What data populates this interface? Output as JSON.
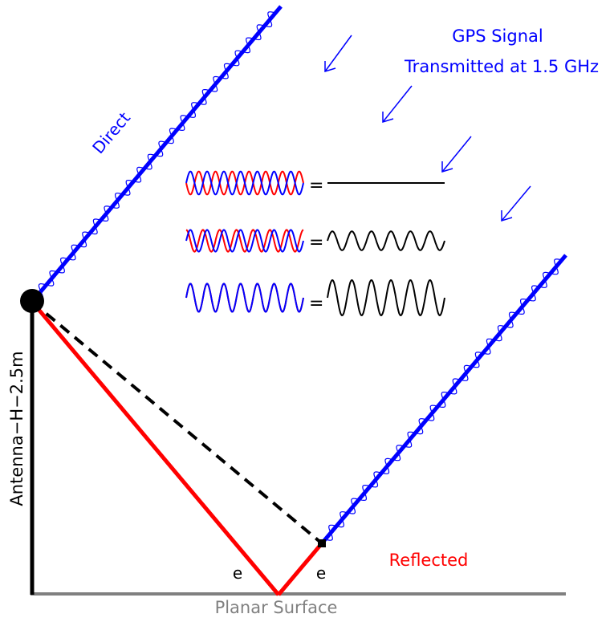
{
  "labels": {
    "signal_line1": "GPS Signal",
    "signal_line2": "Transmitted at 1.5 GHz",
    "direct": "Direct",
    "reflected": "Reflected",
    "antenna": "Antenna−H−2.5m",
    "surface": "Planar Surface",
    "angle_left": "e",
    "angle_right": "e",
    "equals": [
      "=",
      "=",
      "="
    ]
  },
  "colors": {
    "direct": "#0000ff",
    "reflected": "#ff0000",
    "antenna": "#000000",
    "surface": "#808080",
    "path_difference": "#000000",
    "sum_wave": "#000000"
  },
  "interference": [
    {
      "case": "destructive",
      "phase_offset_deg": 180,
      "result_amplitude": 0
    },
    {
      "case": "partial",
      "phase_offset_deg": 90,
      "result_amplitude": 0.7
    },
    {
      "case": "constructive",
      "phase_offset_deg": 0,
      "result_amplitude": 1
    }
  ]
}
